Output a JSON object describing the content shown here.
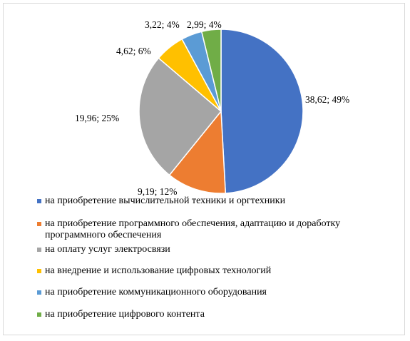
{
  "chart_data": {
    "type": "pie",
    "title": "",
    "slices": [
      {
        "label": "на приобретение вычислительной техники и оргтехники",
        "value": 38.62,
        "percent": "49%",
        "data_label": "38,62; 49%",
        "color": "#4472C4"
      },
      {
        "label": "на приобретение программного обеспечения, адаптацию и доработку программного обеспечения",
        "value": 9.19,
        "percent": "12%",
        "data_label": "9,19; 12%",
        "color": "#ED7D31"
      },
      {
        "label": " на оплату услуг электросвязи",
        "value": 19.96,
        "percent": "25%",
        "data_label": "19,96; 25%",
        "color": "#A5A5A5"
      },
      {
        "label": "на внедрение и использование цифровых технологий",
        "value": 4.62,
        "percent": "6%",
        "data_label": "4,62; 6%",
        "color": "#FFC000"
      },
      {
        "label": "на приобретение коммуникационного оборудования",
        "value": 3.22,
        "percent": "4%",
        "data_label": "3,22; 4%",
        "color": "#5B9BD5"
      },
      {
        "label": "на приобретение цифрового контента",
        "value": 2.99,
        "percent": "4%",
        "data_label": "2,99; 4%",
        "color": "#70AD47"
      }
    ],
    "start_angle": "12 o'clock",
    "direction": "clockwise",
    "legend_position": "bottom-left"
  }
}
